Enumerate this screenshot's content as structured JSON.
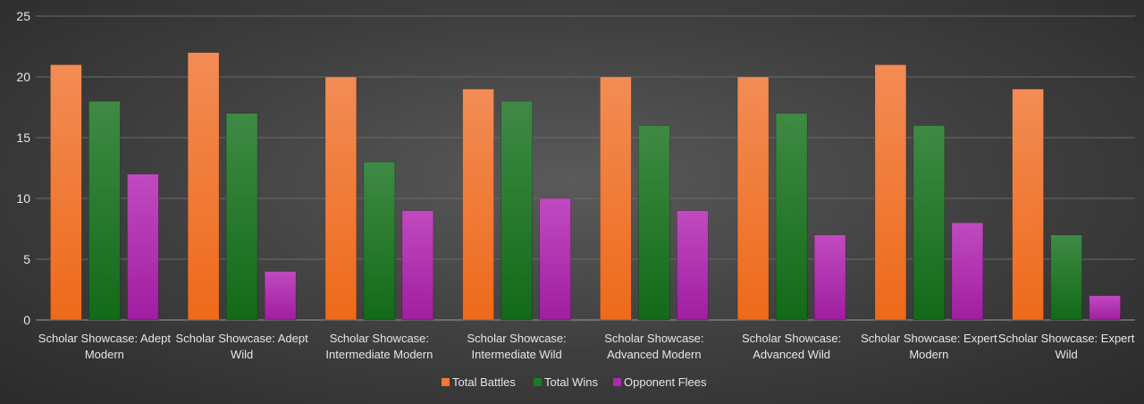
{
  "chart_data": {
    "type": "bar",
    "categories": [
      [
        "Scholar Showcase: Adept",
        "Modern"
      ],
      [
        "Scholar Showcase: Adept",
        "Wild"
      ],
      [
        "Scholar Showcase:",
        "Intermediate Modern"
      ],
      [
        "Scholar Showcase:",
        "Intermediate Wild"
      ],
      [
        "Scholar Showcase:",
        "Advanced Modern"
      ],
      [
        "Scholar Showcase:",
        "Advanced Wild"
      ],
      [
        "Scholar Showcase: Expert",
        "Modern"
      ],
      [
        "Scholar Showcase: Expert",
        "Wild"
      ]
    ],
    "series": [
      {
        "name": "Total Battles",
        "color": "#f07a2e",
        "values": [
          21,
          22,
          20,
          19,
          20,
          20,
          21,
          19
        ]
      },
      {
        "name": "Total Wins",
        "color": "#1e7a24",
        "values": [
          18,
          17,
          13,
          18,
          16,
          17,
          16,
          7
        ]
      },
      {
        "name": "Opponent Flees",
        "color": "#b02ab0",
        "values": [
          12,
          4,
          9,
          10,
          9,
          7,
          8,
          2
        ]
      }
    ],
    "yticks": [
      0,
      5,
      10,
      15,
      20,
      25
    ],
    "ylim": [
      0,
      25
    ],
    "grid": true,
    "legend": "bottom-center"
  }
}
